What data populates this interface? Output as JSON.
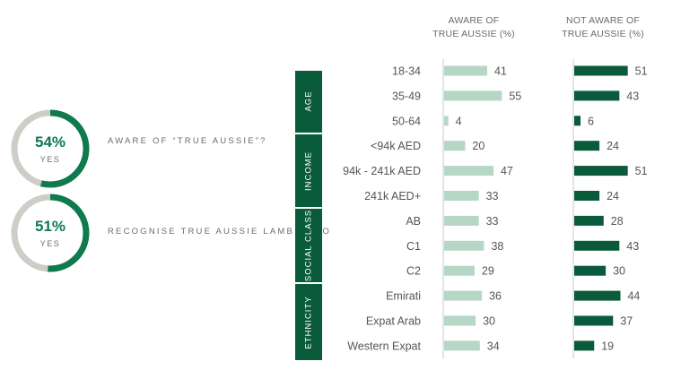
{
  "kpis": [
    {
      "value": 0.54,
      "percent_label": "54%",
      "sub_label": "YES",
      "label": "AWARE OF “TRUE AUSSIE”?"
    },
    {
      "value": 0.51,
      "percent_label": "51%",
      "sub_label": "YES",
      "label": "RECOGNISE TRUE AUSSIE LAMB LOGO"
    }
  ],
  "columns": [
    {
      "line1": "AWARE OF",
      "line2": "TRUE AUSSIE (%)"
    },
    {
      "line1": "NOT AWARE OF",
      "line2": "TRUE AUSSIE (%)"
    }
  ],
  "groups": [
    {
      "label": "AGE",
      "from": 0,
      "to": 2
    },
    {
      "label": "INCOME",
      "from": 3,
      "to": 5
    },
    {
      "label": "SOCIAL CLASS",
      "from": 6,
      "to": 8
    },
    {
      "label": "ETHNICITY",
      "from": 9,
      "to": 11
    }
  ],
  "colors": {
    "accent": "#0e7a4e",
    "dark_green": "#0a5b3c",
    "light_green": "#b6d6c6",
    "ring_grey": "#cfcdc8",
    "text": "#555555"
  },
  "chart_data": {
    "type": "bar",
    "categories": [
      "18-34",
      "35-49",
      "50-64",
      "<94k AED",
      "94k - 241k AED",
      "241k AED+",
      "AB",
      "C1",
      "C2",
      "Emirati",
      "Expat Arab",
      "Western Expat"
    ],
    "series": [
      {
        "name": "AWARE OF TRUE AUSSIE (%)",
        "values": [
          41,
          55,
          4,
          20,
          47,
          33,
          33,
          38,
          29,
          36,
          30,
          34
        ]
      },
      {
        "name": "NOT AWARE OF TRUE AUSSIE (%)",
        "values": [
          51,
          43,
          6,
          24,
          51,
          24,
          28,
          43,
          30,
          44,
          37,
          19
        ]
      }
    ],
    "title": "",
    "xlabel": "",
    "ylabel": "",
    "orientation": "horizontal",
    "grid": false
  }
}
